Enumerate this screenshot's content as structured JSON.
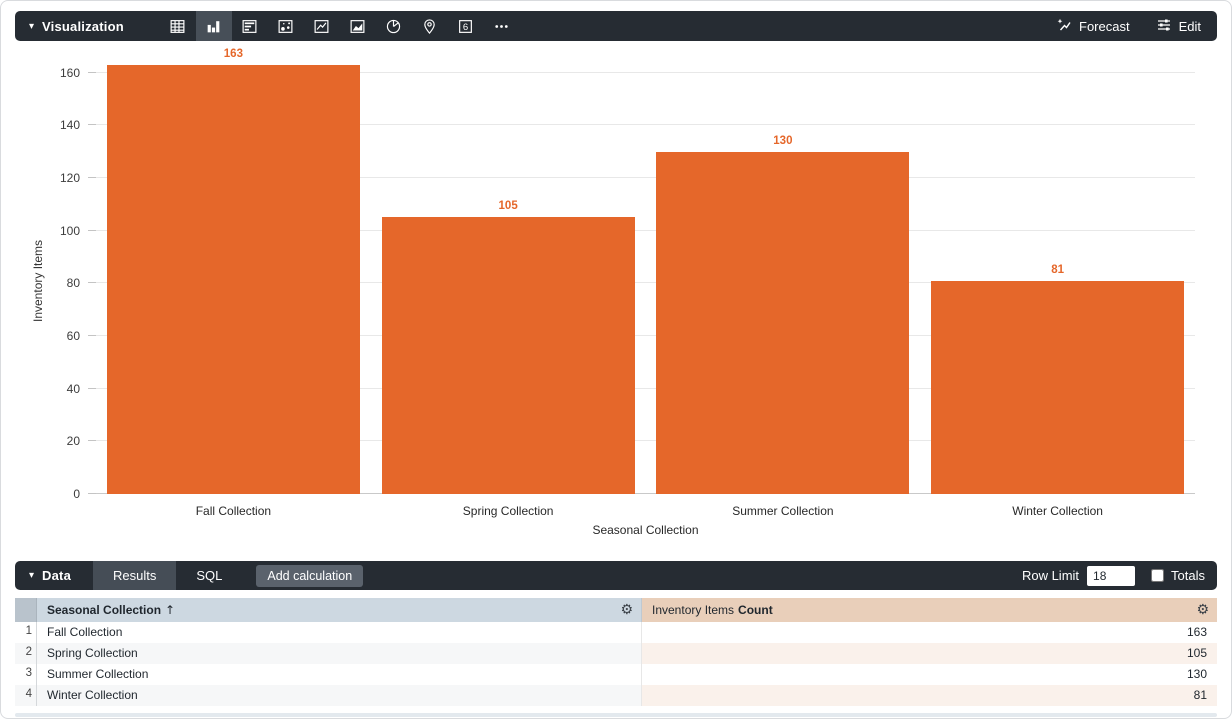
{
  "viz_toolbar": {
    "section_label": "Visualization",
    "icons": [
      {
        "name": "table-chart-icon",
        "selected": false
      },
      {
        "name": "column-chart-icon",
        "selected": true
      },
      {
        "name": "bar-chart-icon",
        "selected": false
      },
      {
        "name": "scatter-chart-icon",
        "selected": false
      },
      {
        "name": "line-chart-icon",
        "selected": false
      },
      {
        "name": "area-chart-icon",
        "selected": false
      },
      {
        "name": "pie-chart-icon",
        "selected": false
      },
      {
        "name": "map-chart-icon",
        "selected": false
      },
      {
        "name": "single-value-icon",
        "selected": false
      },
      {
        "name": "more-viz-icon",
        "selected": false
      }
    ],
    "forecast_label": "Forecast",
    "edit_label": "Edit"
  },
  "chart_data": {
    "type": "bar",
    "title": "",
    "categories": [
      "Fall Collection",
      "Spring Collection",
      "Summer Collection",
      "Winter Collection"
    ],
    "values": [
      163,
      105,
      130,
      81
    ],
    "value_labels": [
      "163",
      "105",
      "130",
      "81"
    ],
    "xlabel": "Seasonal Collection",
    "ylabel": "Inventory Items",
    "ylim": [
      0,
      160
    ],
    "ytick_step": 20,
    "grid": true,
    "bar_color": "#e5672a",
    "value_label_color": "#e5672a",
    "legend": "none"
  },
  "data_panel": {
    "section_label": "Data",
    "tabs": [
      {
        "label": "Results",
        "active": true
      },
      {
        "label": "SQL",
        "active": false
      }
    ],
    "add_calculation_label": "Add calculation",
    "row_limit_label": "Row Limit",
    "row_limit_value": "18",
    "totals_label": "Totals",
    "totals_checked": false
  },
  "table": {
    "columns": [
      {
        "label": "Seasonal Collection",
        "sort": "asc",
        "sort_glyph": "↑"
      },
      {
        "dimension_part": "Inventory Items",
        "measure_part": "Count"
      }
    ],
    "gear_glyph": "⚙",
    "rows": [
      {
        "num": "1",
        "dimension": "Fall Collection",
        "value": "163"
      },
      {
        "num": "2",
        "dimension": "Spring Collection",
        "value": "105"
      },
      {
        "num": "3",
        "dimension": "Summer Collection",
        "value": "130"
      },
      {
        "num": "4",
        "dimension": "Winter Collection",
        "value": "81"
      }
    ]
  },
  "glyphs": {
    "caret": "▾"
  },
  "colors": {
    "toolbar_bg": "#262c33",
    "selected_icon_bg": "#474f58",
    "active_tab_bg": "#454d56",
    "header1_bg": "#cdd8e1",
    "header2_bg": "#e9cfba",
    "bar_orange": "#e5672a"
  }
}
